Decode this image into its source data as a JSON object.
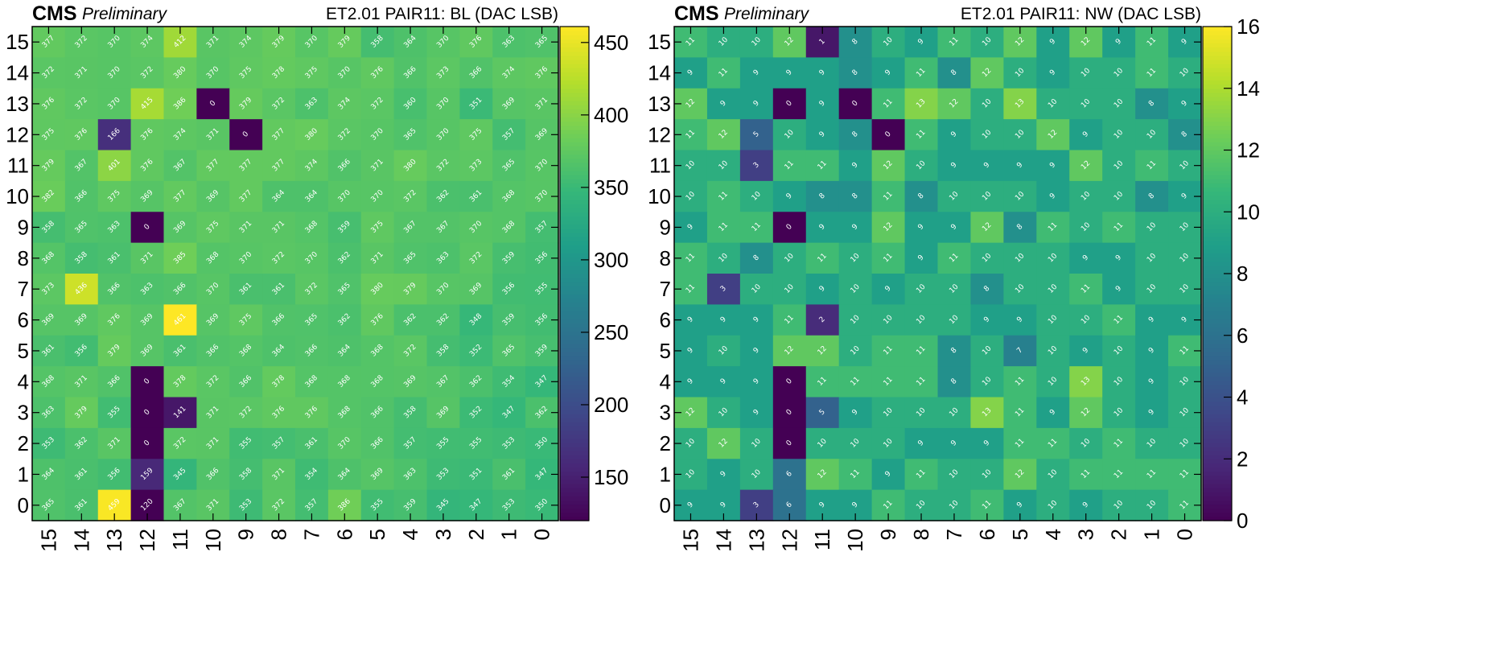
{
  "chart_data": [
    {
      "type": "heatmap",
      "brand": "CMS",
      "tag": "Preliminary",
      "title": "ET2.01 PAIR11: BL (DAC LSB)",
      "x_tick_labels": [
        "15",
        "14",
        "13",
        "12",
        "11",
        "10",
        "9",
        "8",
        "7",
        "6",
        "5",
        "4",
        "3",
        "2",
        "1",
        "0"
      ],
      "y_tick_labels": [
        "0",
        "1",
        "2",
        "3",
        "4",
        "5",
        "6",
        "7",
        "8",
        "9",
        "10",
        "11",
        "12",
        "13",
        "14",
        "15"
      ],
      "z_range": [
        120,
        461
      ],
      "colorbar_ticks": [
        "150",
        "200",
        "250",
        "300",
        "350",
        "400",
        "450"
      ],
      "colormap": "viridis",
      "rows_y15_to_y0": [
        [
          377,
          372,
          370,
          374,
          412,
          371,
          374,
          379,
          370,
          379,
          358,
          364,
          370,
          376,
          363,
          365
        ],
        [
          372,
          371,
          370,
          372,
          380,
          370,
          375,
          378,
          375,
          370,
          376,
          366,
          373,
          366,
          374,
          376
        ],
        [
          376,
          372,
          370,
          415,
          386,
          0,
          379,
          372,
          363,
          374,
          372,
          360,
          370,
          351,
          369,
          371
        ],
        [
          375,
          376,
          166,
          376,
          374,
          371,
          0,
          377,
          380,
          372,
          370,
          365,
          370,
          375,
          357,
          369
        ],
        [
          379,
          367,
          401,
          376,
          367,
          377,
          377,
          377,
          374,
          366,
          371,
          380,
          372,
          373,
          365,
          370
        ],
        [
          382,
          366,
          375,
          369,
          377,
          369,
          377,
          364,
          364,
          370,
          370,
          372,
          362,
          361,
          368,
          370
        ],
        [
          358,
          365,
          363,
          0,
          369,
          375,
          371,
          371,
          368,
          359,
          375,
          367,
          367,
          370,
          368,
          357
        ],
        [
          368,
          358,
          361,
          371,
          385,
          368,
          370,
          372,
          370,
          362,
          371,
          365,
          363,
          372,
          359,
          356
        ],
        [
          373,
          436,
          366,
          363,
          366,
          370,
          361,
          361,
          372,
          365,
          380,
          379,
          370,
          369,
          356,
          355
        ],
        [
          369,
          369,
          376,
          369,
          461,
          369,
          375,
          366,
          365,
          362,
          376,
          362,
          362,
          348,
          359,
          356
        ],
        [
          361,
          356,
          379,
          369,
          361,
          366,
          368,
          364,
          366,
          364,
          368,
          372,
          358,
          352,
          365,
          359
        ],
        [
          368,
          371,
          366,
          0,
          378,
          372,
          366,
          378,
          368,
          368,
          368,
          369,
          367,
          362,
          354,
          347
        ],
        [
          363,
          379,
          355,
          0,
          141,
          371,
          372,
          376,
          376,
          368,
          366,
          358,
          369,
          352,
          347,
          362
        ],
        [
          353,
          362,
          371,
          0,
          372,
          371,
          355,
          357,
          361,
          370,
          366,
          357,
          355,
          355,
          353,
          350
        ],
        [
          364,
          361,
          356,
          159,
          345,
          366,
          358,
          371,
          354,
          364,
          369,
          363,
          353,
          351,
          361,
          347
        ],
        [
          365,
          361,
          459,
          120,
          367,
          371,
          353,
          372,
          357,
          386,
          355,
          359,
          345,
          347,
          353,
          350
        ]
      ]
    },
    {
      "type": "heatmap",
      "brand": "CMS",
      "tag": "Preliminary",
      "title": "ET2.01 PAIR11: NW (DAC LSB)",
      "x_tick_labels": [
        "15",
        "14",
        "13",
        "12",
        "11",
        "10",
        "9",
        "8",
        "7",
        "6",
        "5",
        "4",
        "3",
        "2",
        "1",
        "0"
      ],
      "y_tick_labels": [
        "0",
        "1",
        "2",
        "3",
        "4",
        "5",
        "6",
        "7",
        "8",
        "9",
        "10",
        "11",
        "12",
        "13",
        "14",
        "15"
      ],
      "z_range": [
        0,
        16
      ],
      "colorbar_ticks": [
        "0",
        "2",
        "4",
        "6",
        "8",
        "10",
        "12",
        "14",
        "16"
      ],
      "colormap": "viridis",
      "rows_y15_to_y0": [
        [
          11,
          10,
          10,
          12,
          1,
          8,
          10,
          9,
          11,
          10,
          12,
          9,
          12,
          9,
          11,
          9
        ],
        [
          9,
          11,
          9,
          9,
          9,
          8,
          9,
          11,
          8,
          12,
          10,
          9,
          10,
          10,
          11,
          10
        ],
        [
          12,
          9,
          9,
          0,
          9,
          0,
          11,
          13,
          12,
          10,
          13,
          10,
          10,
          10,
          8,
          9
        ],
        [
          11,
          12,
          5,
          10,
          9,
          8,
          0,
          11,
          9,
          10,
          10,
          12,
          9,
          10,
          10,
          8
        ],
        [
          10,
          10,
          3,
          11,
          11,
          9,
          12,
          10,
          9,
          9,
          9,
          9,
          12,
          10,
          11,
          10
        ],
        [
          10,
          11,
          10,
          9,
          8,
          8,
          11,
          8,
          10,
          10,
          10,
          9,
          10,
          10,
          8,
          9
        ],
        [
          9,
          11,
          11,
          0,
          9,
          9,
          12,
          9,
          9,
          12,
          8,
          11,
          10,
          11,
          10,
          10
        ],
        [
          11,
          10,
          8,
          10,
          11,
          10,
          11,
          9,
          11,
          10,
          10,
          10,
          9,
          9,
          10,
          10
        ],
        [
          11,
          3,
          10,
          10,
          9,
          10,
          9,
          10,
          10,
          8,
          10,
          10,
          11,
          9,
          10,
          10
        ],
        [
          9,
          9,
          9,
          11,
          2,
          10,
          10,
          10,
          10,
          9,
          9,
          10,
          10,
          11,
          9,
          9
        ],
        [
          9,
          10,
          9,
          12,
          12,
          10,
          11,
          11,
          8,
          10,
          7,
          10,
          9,
          10,
          9,
          11
        ],
        [
          9,
          9,
          9,
          0,
          11,
          11,
          11,
          11,
          8,
          10,
          11,
          10,
          13,
          10,
          9,
          10
        ],
        [
          12,
          10,
          9,
          0,
          5,
          9,
          10,
          10,
          10,
          13,
          11,
          9,
          12,
          10,
          9,
          10
        ],
        [
          10,
          12,
          10,
          0,
          10,
          10,
          10,
          9,
          9,
          9,
          11,
          11,
          10,
          11,
          10,
          10
        ],
        [
          10,
          9,
          10,
          6,
          12,
          11,
          9,
          11,
          10,
          10,
          12,
          10,
          11,
          11,
          11,
          11
        ],
        [
          9,
          9,
          3,
          6,
          9,
          9,
          11,
          10,
          10,
          11,
          9,
          10,
          9,
          10,
          10,
          11
        ]
      ]
    }
  ]
}
